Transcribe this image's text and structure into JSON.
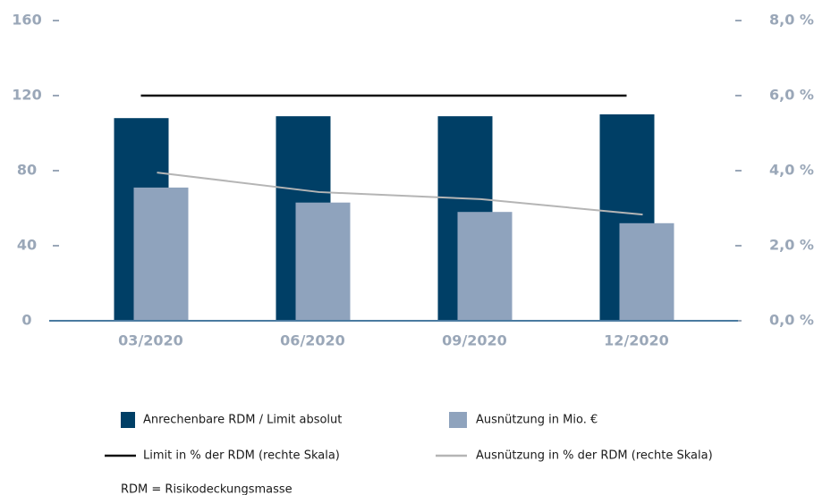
{
  "chart_data": {
    "type": "bar_line",
    "categories": [
      "03/2020",
      "06/2020",
      "09/2020",
      "12/2020"
    ],
    "series": [
      {
        "name": "Anrechenbare RDM / Limit absolut",
        "type": "bar",
        "color": "#003f66",
        "values": [
          108,
          109,
          109,
          110
        ]
      },
      {
        "name": "Ausnützung in Mio. €",
        "type": "bar",
        "color": "#8fa3bd",
        "values": [
          71,
          63,
          58,
          52
        ]
      },
      {
        "name": "Limit in % der RDM (rechte Skala)",
        "type": "line",
        "axis": "y2",
        "color": "#111111",
        "values": [
          6.0,
          6.0,
          6.0,
          6.0
        ]
      },
      {
        "name": "Ausnützung in % der RDM (rechte Skala)",
        "type": "line",
        "axis": "y2",
        "color": "#b5b5b5",
        "values": [
          3.95,
          3.43,
          3.24,
          2.83
        ]
      }
    ],
    "ylim": [
      0,
      160
    ],
    "yticks": [
      0,
      40,
      80,
      120,
      160
    ],
    "y2lim": [
      0,
      8
    ],
    "y2ticks": [
      {
        "value": 0,
        "label": "0,0 %"
      },
      {
        "value": 2,
        "label": "2,0 %"
      },
      {
        "value": 4,
        "label": "4,0 %"
      },
      {
        "value": 6,
        "label": "6,0 %"
      },
      {
        "value": 8,
        "label": "8,0 %"
      }
    ],
    "note": "RDM = Risikodeckungsmasse"
  }
}
